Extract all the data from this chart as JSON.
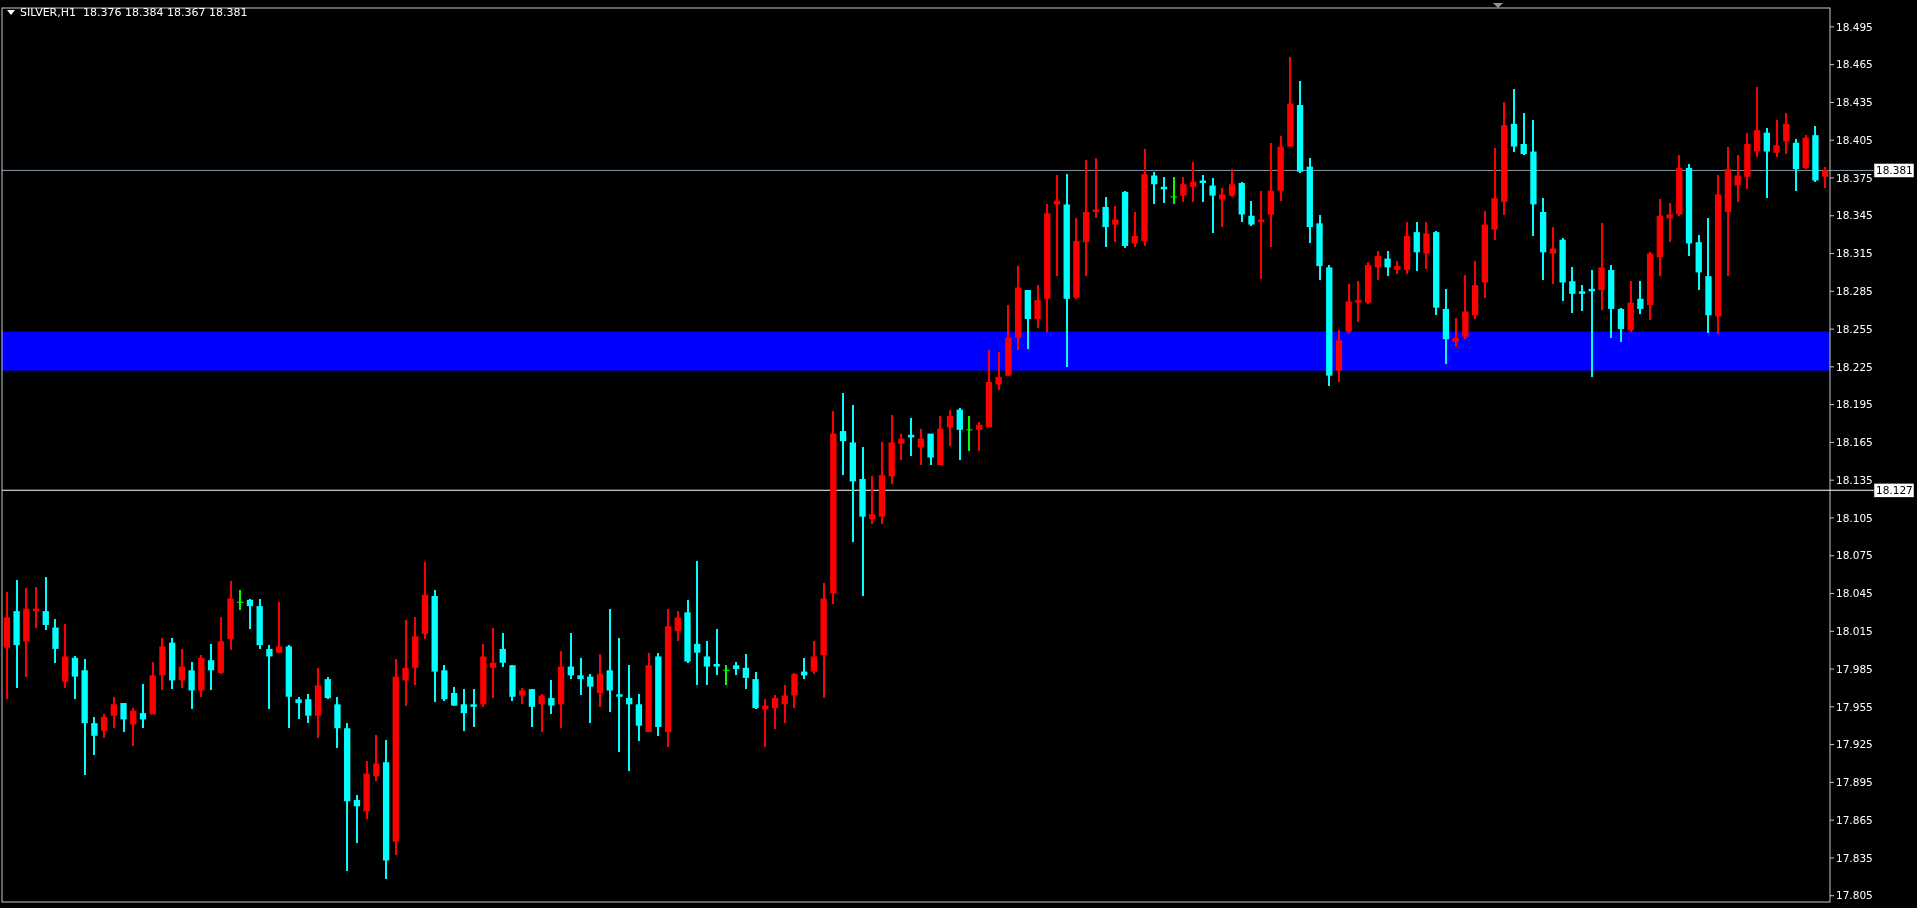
{
  "chart_data": {
    "type": "candlestick",
    "title": "SILVER,H1  18.376 18.384 18.367 18.381",
    "tick_labels": "y",
    "categories": [
      null,
      null,
      null,
      null,
      null,
      null,
      null,
      null,
      null,
      null,
      null,
      null,
      null,
      null,
      null,
      null,
      null,
      null,
      null,
      null,
      null,
      null,
      null,
      null,
      null,
      null,
      null,
      null,
      null,
      null,
      null,
      null,
      null,
      null,
      null,
      null,
      null,
      null,
      null,
      null,
      null,
      null,
      null,
      null,
      null,
      null,
      null,
      null,
      null,
      null,
      null,
      null,
      null,
      null,
      null,
      null,
      null,
      null,
      null,
      null,
      null,
      null,
      null,
      null,
      null,
      null,
      null,
      null,
      null,
      null,
      null,
      null,
      null,
      null,
      null,
      null,
      null,
      null,
      null,
      null,
      null,
      null,
      null,
      null,
      null,
      null,
      null,
      null,
      null,
      null,
      null,
      null,
      null,
      null,
      null,
      null,
      null,
      null,
      null,
      null,
      null,
      null,
      null,
      null,
      null,
      null,
      null,
      null,
      null,
      null,
      null,
      null,
      null,
      null,
      null,
      null,
      null,
      null,
      null,
      null,
      null,
      null,
      null,
      null,
      null,
      null,
      null,
      null,
      null,
      null,
      null,
      null,
      null,
      null,
      null,
      null,
      null,
      null,
      null,
      null,
      null,
      null,
      null,
      null,
      null,
      null,
      null,
      null,
      null,
      null,
      null,
      null,
      null,
      null,
      null,
      null,
      null,
      null,
      null,
      null,
      null,
      null,
      null,
      null,
      null,
      null,
      null,
      null,
      null,
      null,
      null,
      null,
      null,
      null,
      null,
      null,
      null,
      null,
      null,
      null,
      null,
      null,
      null,
      null,
      null,
      null,
      null,
      null
    ],
    "ohlc": [
      [
        18.002,
        18.046,
        17.961,
        18.026
      ],
      [
        18.031,
        18.056,
        17.97,
        18.004
      ],
      [
        18.007,
        18.049,
        17.979,
        18.033
      ],
      [
        18.031,
        18.05,
        18.018,
        18.033
      ],
      [
        18.031,
        18.058,
        18.016,
        18.02
      ],
      [
        18.018,
        18.025,
        17.99,
        18.001
      ],
      [
        17.975,
        18.021,
        17.97,
        17.995
      ],
      [
        17.994,
        17.995,
        17.961,
        17.979
      ],
      [
        17.984,
        17.993,
        17.901,
        17.942
      ],
      [
        17.942,
        17.947,
        17.917,
        17.932
      ],
      [
        17.936,
        17.949,
        17.93,
        17.947
      ],
      [
        17.948,
        17.963,
        17.938,
        17.957
      ],
      [
        17.958,
        17.958,
        17.935,
        17.945
      ],
      [
        17.941,
        17.954,
        17.924,
        17.952
      ],
      [
        17.95,
        17.973,
        17.938,
        17.945
      ],
      [
        17.949,
        17.991,
        17.949,
        17.98
      ],
      [
        17.98,
        18.01,
        17.968,
        18.003
      ],
      [
        18.006,
        18.01,
        17.969,
        17.976
      ],
      [
        17.976,
        18.001,
        17.97,
        17.987
      ],
      [
        17.984,
        17.991,
        17.953,
        17.968
      ],
      [
        17.968,
        17.996,
        17.963,
        17.994
      ],
      [
        17.992,
        18.005,
        17.968,
        17.984
      ],
      [
        17.982,
        18.026,
        17.981,
        18.007
      ],
      [
        18.009,
        18.055,
        18.0,
        18.041
      ],
      [
        18.038,
        18.048,
        18.032,
        18.038
      ],
      [
        18.04,
        18.041,
        18.017,
        18.035
      ],
      [
        18.035,
        18.041,
        18.001,
        18.004
      ],
      [
        18.001,
        18.004,
        17.953,
        17.995
      ],
      [
        17.998,
        18.038,
        17.998,
        18.003
      ],
      [
        18.003,
        18.004,
        17.938,
        17.963
      ],
      [
        17.961,
        17.963,
        17.945,
        17.958
      ],
      [
        17.961,
        17.965,
        17.942,
        17.948
      ],
      [
        17.948,
        17.986,
        17.93,
        17.972
      ],
      [
        17.977,
        17.979,
        17.961,
        17.962
      ],
      [
        17.957,
        17.963,
        17.922,
        17.938
      ],
      [
        17.938,
        17.942,
        17.825,
        17.88
      ],
      [
        17.881,
        17.885,
        17.847,
        17.876
      ],
      [
        17.872,
        17.912,
        17.866,
        17.902
      ],
      [
        17.9,
        17.933,
        17.896,
        17.91
      ],
      [
        17.911,
        17.929,
        17.818,
        17.833
      ],
      [
        17.848,
        17.993,
        17.837,
        17.979
      ],
      [
        17.976,
        18.024,
        17.956,
        17.986
      ],
      [
        17.986,
        18.026,
        17.972,
        18.011
      ],
      [
        18.013,
        18.07,
        18.009,
        18.044
      ],
      [
        18.043,
        18.048,
        17.959,
        17.983
      ],
      [
        17.984,
        17.988,
        17.96,
        17.961
      ],
      [
        17.966,
        17.971,
        17.956,
        17.956
      ],
      [
        17.957,
        17.969,
        17.936,
        17.95
      ],
      [
        17.957,
        17.969,
        17.939,
        17.955
      ],
      [
        17.957,
        18.005,
        17.955,
        17.995
      ],
      [
        17.986,
        18.018,
        17.962,
        17.99
      ],
      [
        18.001,
        18.014,
        17.987,
        17.99
      ],
      [
        17.988,
        17.988,
        17.96,
        17.963
      ],
      [
        17.964,
        17.97,
        17.957,
        17.968
      ],
      [
        17.969,
        17.969,
        17.939,
        17.955
      ],
      [
        17.957,
        17.965,
        17.935,
        17.964
      ],
      [
        17.962,
        17.976,
        17.949,
        17.956
      ],
      [
        17.957,
        17.999,
        17.938,
        17.987
      ],
      [
        17.987,
        18.014,
        17.977,
        17.98
      ],
      [
        17.98,
        17.994,
        17.964,
        17.977
      ],
      [
        17.979,
        17.981,
        17.942,
        17.971
      ],
      [
        17.966,
        17.997,
        17.955,
        17.981
      ],
      [
        17.984,
        18.033,
        17.951,
        17.968
      ],
      [
        17.965,
        18.01,
        17.919,
        17.963
      ],
      [
        17.962,
        17.988,
        17.904,
        17.957
      ],
      [
        17.957,
        17.965,
        17.928,
        17.94
      ],
      [
        17.935,
        17.998,
        17.935,
        17.988
      ],
      [
        17.995,
        17.998,
        17.932,
        17.939
      ],
      [
        17.935,
        18.033,
        17.923,
        18.019
      ],
      [
        18.015,
        18.031,
        18.007,
        18.026
      ],
      [
        18.03,
        18.04,
        17.99,
        17.991
      ],
      [
        18.005,
        18.071,
        17.972,
        17.998
      ],
      [
        17.995,
        18.007,
        17.972,
        17.987
      ],
      [
        17.989,
        18.017,
        17.98,
        17.987
      ],
      [
        17.984,
        17.988,
        17.972,
        17.984
      ],
      [
        17.988,
        17.991,
        17.98,
        17.985
      ],
      [
        17.986,
        17.997,
        17.969,
        17.978
      ],
      [
        17.977,
        17.983,
        17.953,
        17.954
      ],
      [
        17.953,
        17.961,
        17.923,
        17.956
      ],
      [
        17.954,
        17.964,
        17.937,
        17.962
      ],
      [
        17.957,
        17.972,
        17.942,
        17.964
      ],
      [
        17.964,
        17.982,
        17.954,
        17.981
      ],
      [
        17.983,
        17.994,
        17.977,
        17.98
      ],
      [
        17.983,
        18.007,
        17.981,
        17.995
      ],
      [
        17.996,
        18.053,
        17.962,
        18.041
      ],
      [
        18.045,
        18.19,
        18.037,
        18.172
      ],
      [
        18.174,
        18.204,
        18.139,
        18.166
      ],
      [
        18.165,
        18.195,
        18.086,
        18.134
      ],
      [
        18.136,
        18.161,
        18.043,
        18.106
      ],
      [
        18.104,
        18.138,
        18.1,
        18.108
      ],
      [
        18.106,
        18.165,
        18.1,
        18.139
      ],
      [
        18.138,
        18.187,
        18.132,
        18.165
      ],
      [
        18.164,
        18.172,
        18.151,
        18.168
      ],
      [
        18.171,
        18.184,
        18.154,
        18.169
      ],
      [
        18.161,
        18.176,
        18.147,
        18.168
      ],
      [
        18.172,
        18.172,
        18.147,
        18.153
      ],
      [
        18.147,
        18.186,
        18.147,
        18.176
      ],
      [
        18.177,
        18.191,
        18.162,
        18.186
      ],
      [
        18.191,
        18.192,
        18.151,
        18.175
      ],
      [
        18.175,
        18.186,
        18.158,
        18.175
      ],
      [
        18.175,
        18.181,
        18.158,
        18.179
      ],
      [
        18.177,
        18.238,
        18.177,
        18.213
      ],
      [
        18.211,
        18.237,
        18.207,
        18.217
      ],
      [
        18.218,
        18.274,
        18.218,
        18.248
      ],
      [
        18.248,
        18.305,
        18.238,
        18.288
      ],
      [
        18.286,
        18.286,
        18.239,
        18.263
      ],
      [
        18.263,
        18.29,
        18.256,
        18.278
      ],
      [
        18.279,
        18.354,
        18.253,
        18.347
      ],
      [
        18.354,
        18.377,
        18.297,
        18.357
      ],
      [
        18.354,
        18.378,
        18.225,
        18.279
      ],
      [
        18.28,
        18.343,
        18.279,
        18.325
      ],
      [
        18.324,
        18.389,
        18.297,
        18.348
      ],
      [
        18.348,
        18.391,
        18.343,
        18.35
      ],
      [
        18.352,
        18.36,
        18.32,
        18.336
      ],
      [
        18.338,
        18.353,
        18.324,
        18.342
      ],
      [
        18.364,
        18.365,
        18.319,
        18.321
      ],
      [
        18.323,
        18.348,
        18.32,
        18.329
      ],
      [
        18.325,
        18.398,
        18.321,
        18.378
      ],
      [
        18.377,
        18.38,
        18.354,
        18.37
      ],
      [
        18.368,
        18.376,
        18.355,
        18.366
      ],
      [
        18.36,
        18.376,
        18.354,
        18.36
      ],
      [
        18.361,
        18.376,
        18.356,
        18.37
      ],
      [
        18.368,
        18.388,
        18.356,
        18.372
      ],
      [
        18.373,
        18.377,
        18.356,
        18.371
      ],
      [
        18.369,
        18.375,
        18.331,
        18.361
      ],
      [
        18.358,
        18.367,
        18.336,
        18.362
      ],
      [
        18.361,
        18.382,
        18.36,
        18.37
      ],
      [
        18.371,
        18.372,
        18.34,
        18.346
      ],
      [
        18.345,
        18.357,
        18.337,
        18.338
      ],
      [
        18.34,
        18.365,
        18.295,
        18.342
      ],
      [
        18.346,
        18.403,
        18.32,
        18.365
      ],
      [
        18.365,
        18.408,
        18.357,
        18.4
      ],
      [
        18.4,
        18.471,
        18.4,
        18.434
      ],
      [
        18.433,
        18.452,
        18.379,
        18.38
      ],
      [
        18.384,
        18.391,
        18.323,
        18.336
      ],
      [
        18.339,
        18.346,
        18.294,
        18.305
      ],
      [
        18.304,
        18.306,
        18.21,
        18.218
      ],
      [
        18.222,
        18.254,
        18.213,
        18.246
      ],
      [
        18.253,
        18.291,
        18.252,
        18.277
      ],
      [
        18.276,
        18.293,
        18.261,
        18.278
      ],
      [
        18.276,
        18.308,
        18.275,
        18.306
      ],
      [
        18.304,
        18.317,
        18.294,
        18.313
      ],
      [
        18.311,
        18.317,
        18.297,
        18.304
      ],
      [
        18.302,
        18.309,
        18.299,
        18.305
      ],
      [
        18.302,
        18.34,
        18.299,
        18.329
      ],
      [
        18.332,
        18.34,
        18.301,
        18.316
      ],
      [
        18.315,
        18.34,
        18.303,
        18.331
      ],
      [
        18.332,
        18.333,
        18.266,
        18.272
      ],
      [
        18.271,
        18.287,
        18.227,
        18.247
      ],
      [
        18.245,
        18.264,
        18.241,
        18.248
      ],
      [
        18.249,
        18.298,
        18.247,
        18.269
      ],
      [
        18.266,
        18.309,
        18.263,
        18.29
      ],
      [
        18.292,
        18.349,
        18.28,
        18.338
      ],
      [
        18.334,
        18.399,
        18.326,
        18.359
      ],
      [
        18.356,
        18.435,
        18.346,
        18.417
      ],
      [
        18.418,
        18.446,
        18.396,
        18.4
      ],
      [
        18.402,
        18.427,
        18.393,
        18.394
      ],
      [
        18.396,
        18.421,
        18.329,
        18.354
      ],
      [
        18.348,
        18.359,
        18.294,
        18.316
      ],
      [
        18.315,
        18.336,
        18.291,
        18.319
      ],
      [
        18.326,
        18.327,
        18.277,
        18.292
      ],
      [
        18.293,
        18.304,
        18.268,
        18.283
      ],
      [
        18.285,
        18.29,
        18.269,
        18.283
      ],
      [
        18.287,
        18.302,
        18.217,
        18.285
      ],
      [
        18.286,
        18.339,
        18.27,
        18.304
      ],
      [
        18.302,
        18.306,
        18.248,
        18.271
      ],
      [
        18.271,
        18.272,
        18.245,
        18.255
      ],
      [
        18.254,
        18.293,
        18.253,
        18.276
      ],
      [
        18.279,
        18.293,
        18.267,
        18.271
      ],
      [
        18.274,
        18.316,
        18.262,
        18.315
      ],
      [
        18.312,
        18.358,
        18.297,
        18.345
      ],
      [
        18.343,
        18.355,
        18.324,
        18.346
      ],
      [
        18.346,
        18.393,
        18.345,
        18.383
      ],
      [
        18.383,
        18.386,
        18.313,
        18.323
      ],
      [
        18.324,
        18.33,
        18.286,
        18.3
      ],
      [
        18.297,
        18.343,
        18.252,
        18.266
      ],
      [
        18.265,
        18.377,
        18.251,
        18.362
      ],
      [
        18.348,
        18.4,
        18.297,
        18.382
      ],
      [
        18.369,
        18.393,
        18.356,
        18.377
      ],
      [
        18.376,
        18.411,
        18.366,
        18.402
      ],
      [
        18.396,
        18.447,
        18.392,
        18.413
      ],
      [
        18.411,
        18.415,
        18.359,
        18.396
      ],
      [
        18.395,
        18.421,
        18.392,
        18.401
      ],
      [
        18.404,
        18.427,
        18.394,
        18.418
      ],
      [
        18.403,
        18.406,
        18.365,
        18.382
      ],
      [
        18.383,
        18.409,
        18.382,
        18.407
      ],
      [
        18.409,
        18.416,
        18.372,
        18.373
      ],
      [
        18.376,
        18.384,
        18.367,
        18.381
      ]
    ],
    "colors": [
      "#ff0000",
      "#00ffff",
      "#ff0000",
      "#ff0000",
      "#00ffff",
      "#00ffff",
      "#ff0000",
      "#00ffff",
      "#00ffff",
      "#00ffff",
      "#ff0000",
      "#ff0000",
      "#00ffff",
      "#ff0000",
      "#00ffff",
      "#ff0000",
      "#ff0000",
      "#00ffff",
      "#ff0000",
      "#00ffff",
      "#ff0000",
      "#00ffff",
      "#ff0000",
      "#ff0000",
      "#00ff00",
      "#00ffff",
      "#00ffff",
      "#00ffff",
      "#ff0000",
      "#00ffff",
      "#00ffff",
      "#00ffff",
      "#ff0000",
      "#00ffff",
      "#00ffff",
      "#00ffff",
      "#00ffff",
      "#ff0000",
      "#ff0000",
      "#00ffff",
      "#ff0000",
      "#ff0000",
      "#ff0000",
      "#ff0000",
      "#00ffff",
      "#00ffff",
      "#00ffff",
      "#00ffff",
      "#00ffff",
      "#ff0000",
      "#ff0000",
      "#00ffff",
      "#00ffff",
      "#ff0000",
      "#00ffff",
      "#ff0000",
      "#00ffff",
      "#ff0000",
      "#00ffff",
      "#00ffff",
      "#00ffff",
      "#ff0000",
      "#00ffff",
      "#00ffff",
      "#00ffff",
      "#00ffff",
      "#ff0000",
      "#00ffff",
      "#ff0000",
      "#ff0000",
      "#00ffff",
      "#00ffff",
      "#00ffff",
      "#00ffff",
      "#00ff00",
      "#00ffff",
      "#00ffff",
      "#00ffff",
      "#ff0000",
      "#ff0000",
      "#ff0000",
      "#ff0000",
      "#00ffff",
      "#ff0000",
      "#ff0000",
      "#ff0000",
      "#00ffff",
      "#00ffff",
      "#00ffff",
      "#ff0000",
      "#ff0000",
      "#ff0000",
      "#ff0000",
      "#00ffff",
      "#ff0000",
      "#00ffff",
      "#ff0000",
      "#ff0000",
      "#00ffff",
      "#00ff00",
      "#ff0000",
      "#ff0000",
      "#ff0000",
      "#ff0000",
      "#ff0000",
      "#00ffff",
      "#ff0000",
      "#ff0000",
      "#ff0000",
      "#00ffff",
      "#ff0000",
      "#ff0000",
      "#ff0000",
      "#00ffff",
      "#ff0000",
      "#00ffff",
      "#ff0000",
      "#ff0000",
      "#00ffff",
      "#00ffff",
      "#00ff00",
      "#ff0000",
      "#ff0000",
      "#00ffff",
      "#00ffff",
      "#ff0000",
      "#ff0000",
      "#00ffff",
      "#00ffff",
      "#ff0000",
      "#ff0000",
      "#ff0000",
      "#ff0000",
      "#00ffff",
      "#00ffff",
      "#00ffff",
      "#00ffff",
      "#ff0000",
      "#ff0000",
      "#ff0000",
      "#ff0000",
      "#ff0000",
      "#00ffff",
      "#ff0000",
      "#ff0000",
      "#00ffff",
      "#ff0000",
      "#00ffff",
      "#00ffff",
      "#ff0000",
      "#ff0000",
      "#ff0000",
      "#ff0000",
      "#ff0000",
      "#ff0000",
      "#00ffff",
      "#00ffff",
      "#00ffff",
      "#00ffff",
      "#ff0000",
      "#00ffff",
      "#00ffff",
      "#00ffff",
      "#00ffff",
      "#ff0000",
      "#00ffff",
      "#00ffff",
      "#ff0000",
      "#00ffff",
      "#ff0000",
      "#ff0000",
      "#ff0000",
      "#ff0000",
      "#00ffff",
      "#00ffff",
      "#00ffff",
      "#ff0000",
      "#ff0000",
      "#ff0000",
      "#ff0000",
      "#ff0000",
      "#00ffff",
      "#ff0000",
      "#ff0000",
      "#00ffff",
      "#ff0000",
      "#00ffff",
      "#ff0000"
    ],
    "ylim": [
      17.8,
      18.51
    ],
    "yticks": [
      17.805,
      17.835,
      17.865,
      17.895,
      17.925,
      17.955,
      17.985,
      18.015,
      18.045,
      18.075,
      18.105,
      18.135,
      18.165,
      18.195,
      18.225,
      18.255,
      18.285,
      18.315,
      18.345,
      18.375,
      18.405,
      18.435,
      18.465,
      18.495
    ],
    "ref_lines": [
      {
        "axis": "y",
        "value": 18.381,
        "label": "18.381",
        "color": "#8797a8"
      },
      {
        "axis": "y",
        "value": 18.127,
        "label": "18.127",
        "color": "#ffffff"
      }
    ],
    "bands": [
      {
        "axis": "y",
        "from": 18.222,
        "to": 18.253,
        "color": "#0000ff"
      }
    ]
  }
}
